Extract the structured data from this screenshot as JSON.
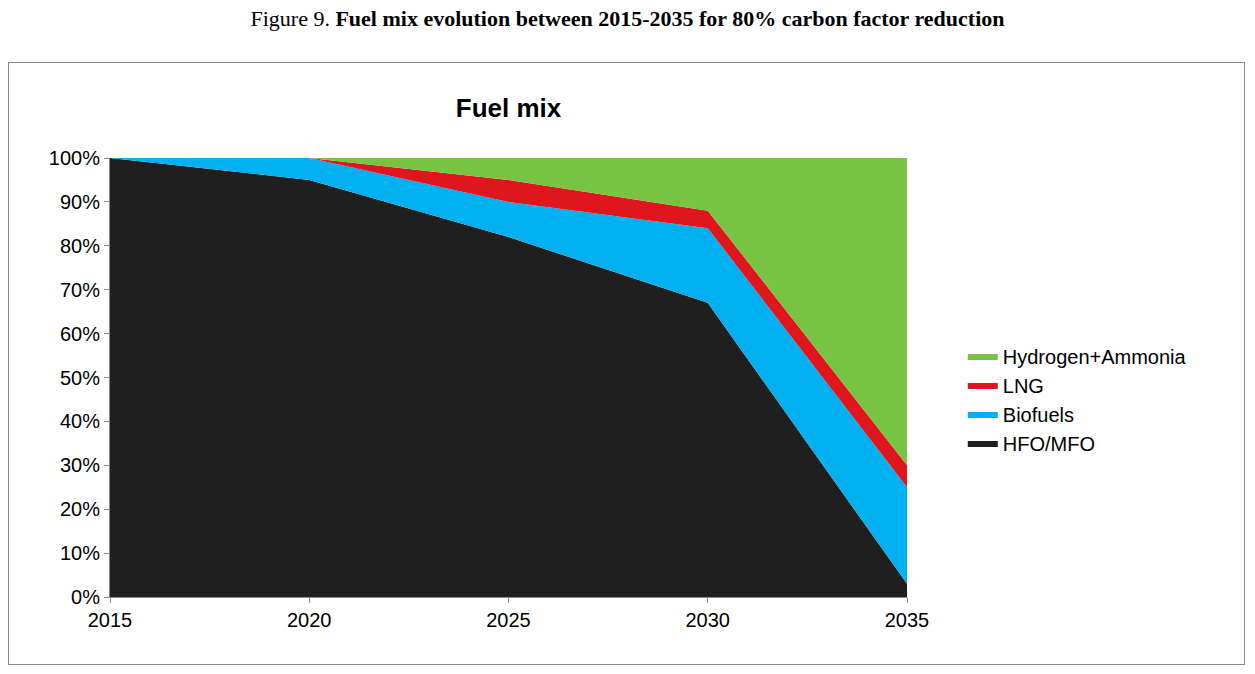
{
  "figure": {
    "label": "Figure 9.",
    "caption": "Fuel mix evolution between 2015-2035 for 80% carbon factor reduction"
  },
  "chart_data": {
    "type": "area",
    "title": "Fuel mix",
    "x": [
      2015,
      2020,
      2025,
      2030,
      2035
    ],
    "series": [
      {
        "name": "HFO/MFO",
        "color": "#1f1f1f",
        "values": [
          100,
          95,
          82,
          67,
          3
        ]
      },
      {
        "name": "Biofuels",
        "color": "#00b0f0",
        "values": [
          0,
          5,
          8,
          17,
          22
        ]
      },
      {
        "name": "LNG",
        "color": "#e0161f",
        "values": [
          0,
          0,
          5,
          4,
          5
        ]
      },
      {
        "name": "Hydrogen+Ammonia",
        "color": "#77c443",
        "values": [
          0,
          0,
          5,
          12,
          70
        ]
      }
    ],
    "xlim": [
      2015,
      2035
    ],
    "xticks": [
      2015,
      2020,
      2025,
      2030,
      2035
    ],
    "ylim": [
      0,
      100
    ],
    "yticks": [
      {
        "value": 0,
        "label": "0%"
      },
      {
        "value": 10,
        "label": "10%"
      },
      {
        "value": 20,
        "label": "20%"
      },
      {
        "value": 30,
        "label": "30%"
      },
      {
        "value": 40,
        "label": "40%"
      },
      {
        "value": 50,
        "label": "50%"
      },
      {
        "value": 60,
        "label": "60%"
      },
      {
        "value": 70,
        "label": "70%"
      },
      {
        "value": 80,
        "label": "80%"
      },
      {
        "value": 90,
        "label": "90%"
      },
      {
        "value": 100,
        "label": "100%"
      }
    ],
    "stacked": true,
    "grid": false,
    "legend": "right"
  }
}
